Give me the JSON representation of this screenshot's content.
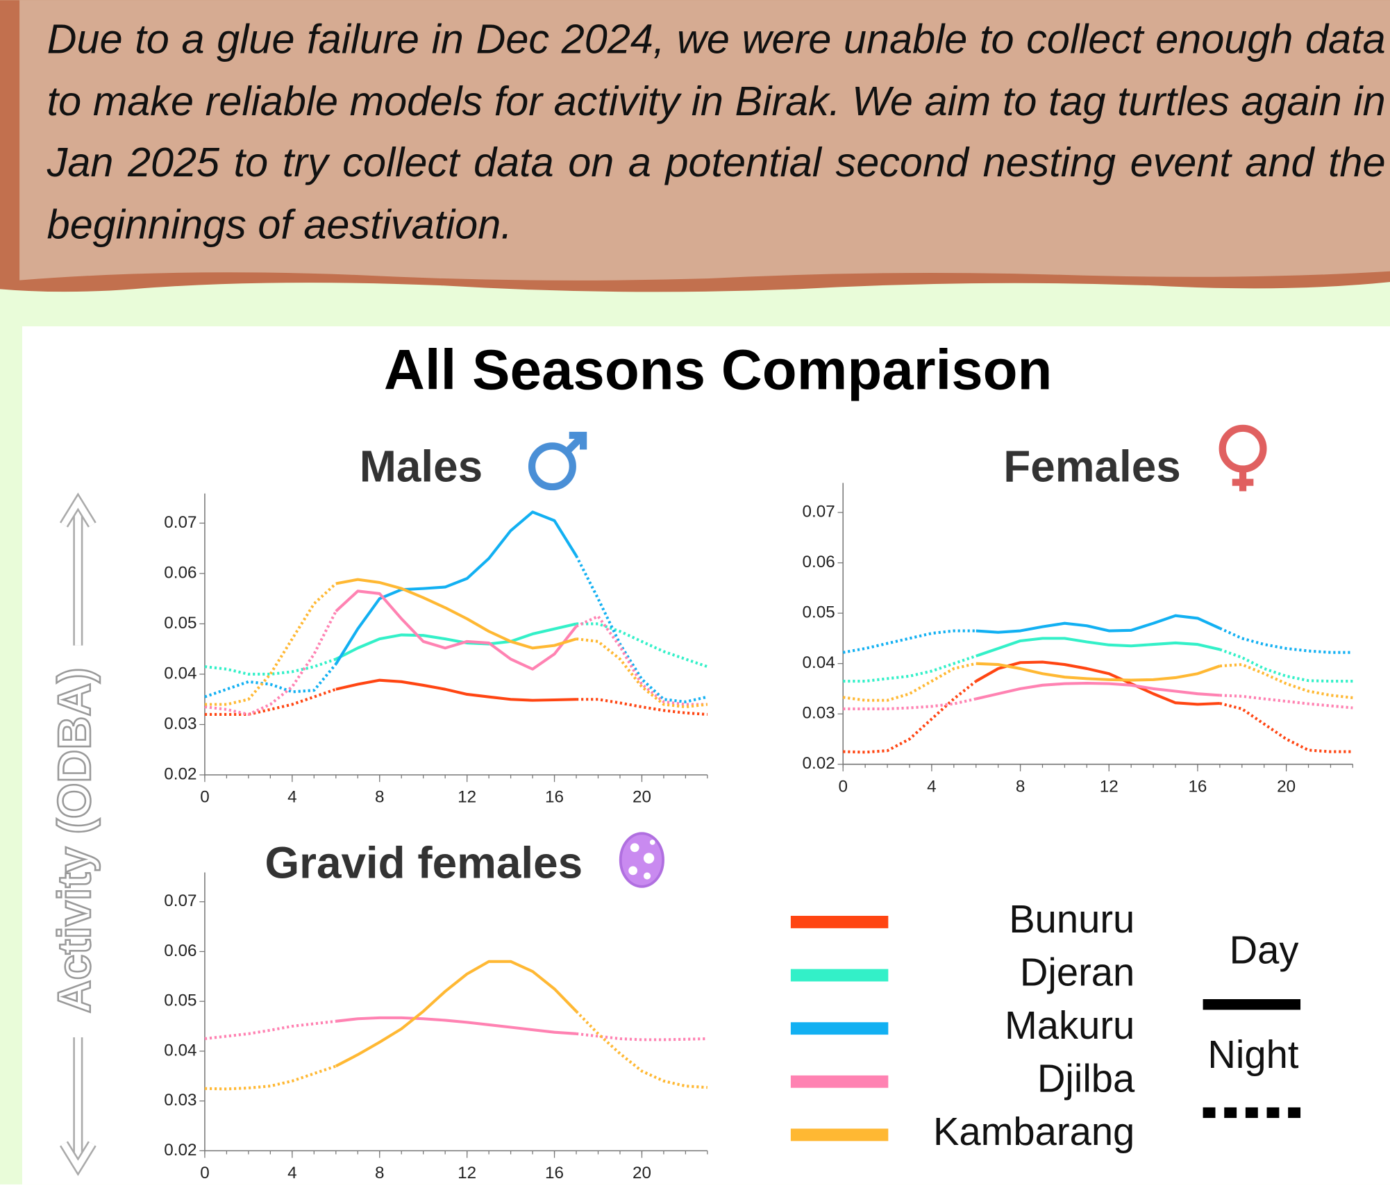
{
  "note": "Due to a glue failure in Dec 2024, we were unable to collect enough data to make reliable models for activity in Birak. We aim to tag turtles again in Jan 2025 to try collect data on a potential second nesting event and the beginnings of aestivation.",
  "title": "All Seasons Comparison",
  "y_axis_label": "Activity (ODBA)",
  "legend": {
    "day": "Day",
    "night": "Night",
    "series": [
      {
        "name": "Bunuru",
        "color": "#ff4512"
      },
      {
        "name": "Djeran",
        "color": "#33f0c8"
      },
      {
        "name": "Makuru",
        "color": "#12b0f2"
      },
      {
        "name": "Djilba",
        "color": "#ff82b2"
      },
      {
        "name": "Kambarang",
        "color": "#ffb833"
      }
    ]
  },
  "chart_data": [
    {
      "type": "line",
      "title": "Males",
      "x": [
        0,
        1,
        2,
        3,
        4,
        5,
        6,
        7,
        8,
        9,
        10,
        11,
        12,
        13,
        14,
        15,
        16,
        17,
        18,
        19,
        20,
        21,
        22,
        23
      ],
      "xlim": [
        0,
        23
      ],
      "xticks": [
        0,
        4,
        8,
        12,
        16,
        20
      ],
      "ylim": [
        0.02,
        0.075
      ],
      "yticks": [
        0.02,
        0.03,
        0.04,
        0.05,
        0.06,
        0.07
      ],
      "day_range": [
        6,
        17
      ],
      "series": [
        {
          "name": "Bunuru",
          "color": "#ff4512",
          "values": [
            0.032,
            0.032,
            0.032,
            0.033,
            0.034,
            0.0355,
            0.037,
            0.038,
            0.0388,
            0.0385,
            0.0378,
            0.037,
            0.036,
            0.0355,
            0.035,
            0.0348,
            0.0349,
            0.035,
            0.035,
            0.0343,
            0.0335,
            0.0328,
            0.0323,
            0.032
          ]
        },
        {
          "name": "Djeran",
          "color": "#33f0c8",
          "values": [
            0.0415,
            0.041,
            0.04,
            0.04,
            0.0405,
            0.0415,
            0.043,
            0.0452,
            0.047,
            0.0478,
            0.0477,
            0.047,
            0.0462,
            0.046,
            0.0465,
            0.048,
            0.049,
            0.05,
            0.05,
            0.0485,
            0.0465,
            0.0445,
            0.043,
            0.0415
          ]
        },
        {
          "name": "Makuru",
          "color": "#12b0f2",
          "values": [
            0.0355,
            0.037,
            0.0385,
            0.038,
            0.0365,
            0.0368,
            0.042,
            0.049,
            0.055,
            0.0568,
            0.057,
            0.0573,
            0.059,
            0.063,
            0.0685,
            0.0722,
            0.0705,
            0.0635,
            0.055,
            0.046,
            0.039,
            0.035,
            0.0345,
            0.0355
          ]
        },
        {
          "name": "Djilba",
          "color": "#ff82b2",
          "values": [
            0.0335,
            0.033,
            0.032,
            0.034,
            0.0375,
            0.044,
            0.0525,
            0.0565,
            0.056,
            0.051,
            0.0465,
            0.0452,
            0.0465,
            0.0462,
            0.043,
            0.041,
            0.044,
            0.0495,
            0.0515,
            0.0455,
            0.038,
            0.0345,
            0.034,
            0.034
          ]
        },
        {
          "name": "Kambarang",
          "color": "#ffb833",
          "values": [
            0.034,
            0.034,
            0.035,
            0.04,
            0.047,
            0.054,
            0.058,
            0.0588,
            0.0582,
            0.057,
            0.0552,
            0.0532,
            0.051,
            0.0485,
            0.0465,
            0.0452,
            0.0457,
            0.047,
            0.0465,
            0.043,
            0.0375,
            0.034,
            0.0335,
            0.034
          ]
        }
      ]
    },
    {
      "type": "line",
      "title": "Females",
      "x": [
        0,
        1,
        2,
        3,
        4,
        5,
        6,
        7,
        8,
        9,
        10,
        11,
        12,
        13,
        14,
        15,
        16,
        17,
        18,
        19,
        20,
        21,
        22,
        23
      ],
      "xlim": [
        0,
        23
      ],
      "xticks": [
        0,
        4,
        8,
        12,
        16,
        20
      ],
      "ylim": [
        0.02,
        0.075
      ],
      "yticks": [
        0.02,
        0.03,
        0.04,
        0.05,
        0.06,
        0.07
      ],
      "day_range": [
        6,
        17
      ],
      "series": [
        {
          "name": "Bunuru",
          "color": "#ff4512",
          "values": [
            0.0225,
            0.0224,
            0.0227,
            0.025,
            0.029,
            0.033,
            0.0365,
            0.039,
            0.0402,
            0.0403,
            0.0398,
            0.039,
            0.038,
            0.036,
            0.034,
            0.0322,
            0.0319,
            0.0321,
            0.031,
            0.028,
            0.025,
            0.0228,
            0.0225,
            0.0225
          ]
        },
        {
          "name": "Djeran",
          "color": "#33f0c8",
          "values": [
            0.0365,
            0.0365,
            0.037,
            0.0375,
            0.0385,
            0.04,
            0.0415,
            0.043,
            0.0445,
            0.045,
            0.045,
            0.0443,
            0.0437,
            0.0435,
            0.0438,
            0.0441,
            0.0438,
            0.0428,
            0.0412,
            0.039,
            0.0375,
            0.0366,
            0.0365,
            0.0365
          ]
        },
        {
          "name": "Makuru",
          "color": "#12b0f2",
          "values": [
            0.0422,
            0.043,
            0.044,
            0.045,
            0.046,
            0.0465,
            0.0465,
            0.0462,
            0.0465,
            0.0473,
            0.048,
            0.0475,
            0.0465,
            0.0466,
            0.048,
            0.0495,
            0.049,
            0.047,
            0.045,
            0.0438,
            0.043,
            0.0425,
            0.0422,
            0.0422
          ]
        },
        {
          "name": "Djilba",
          "color": "#ff82b2",
          "values": [
            0.031,
            0.031,
            0.031,
            0.0312,
            0.0315,
            0.032,
            0.033,
            0.034,
            0.035,
            0.0357,
            0.036,
            0.0361,
            0.036,
            0.0357,
            0.035,
            0.0345,
            0.034,
            0.0337,
            0.0335,
            0.033,
            0.0325,
            0.032,
            0.0316,
            0.0312
          ]
        },
        {
          "name": "Kambarang",
          "color": "#ffb833",
          "values": [
            0.0333,
            0.0327,
            0.0327,
            0.034,
            0.0365,
            0.039,
            0.04,
            0.0398,
            0.039,
            0.038,
            0.0373,
            0.037,
            0.0368,
            0.0367,
            0.0368,
            0.0372,
            0.038,
            0.0395,
            0.0398,
            0.038,
            0.036,
            0.0345,
            0.0337,
            0.0332
          ]
        }
      ]
    },
    {
      "type": "line",
      "title": "Gravid females",
      "x": [
        0,
        1,
        2,
        3,
        4,
        5,
        6,
        7,
        8,
        9,
        10,
        11,
        12,
        13,
        14,
        15,
        16,
        17,
        18,
        19,
        20,
        21,
        22,
        23
      ],
      "xlim": [
        0,
        23
      ],
      "xticks": [
        0,
        4,
        8,
        12,
        16,
        20
      ],
      "ylim": [
        0.02,
        0.075
      ],
      "yticks": [
        0.02,
        0.03,
        0.04,
        0.05,
        0.06,
        0.07
      ],
      "day_range": [
        6,
        17
      ],
      "series": [
        {
          "name": "Djilba",
          "color": "#ff82b2",
          "values": [
            0.0425,
            0.043,
            0.0435,
            0.0442,
            0.045,
            0.0455,
            0.046,
            0.0465,
            0.0467,
            0.0467,
            0.0465,
            0.0462,
            0.0458,
            0.0453,
            0.0448,
            0.0443,
            0.0438,
            0.0435,
            0.043,
            0.0425,
            0.0423,
            0.0423,
            0.0424,
            0.0425
          ]
        },
        {
          "name": "Kambarang",
          "color": "#ffb833",
          "values": [
            0.0325,
            0.0324,
            0.0326,
            0.033,
            0.034,
            0.0355,
            0.037,
            0.0393,
            0.0418,
            0.0445,
            0.048,
            0.052,
            0.0555,
            0.058,
            0.058,
            0.056,
            0.0525,
            0.048,
            0.0435,
            0.0395,
            0.036,
            0.034,
            0.033,
            0.0327
          ]
        }
      ]
    }
  ]
}
